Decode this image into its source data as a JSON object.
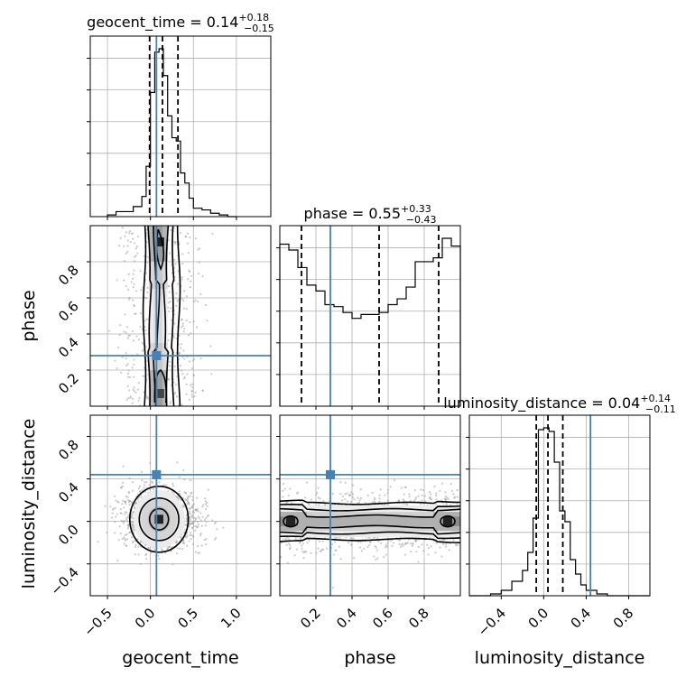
{
  "chart_data": {
    "type": "corner",
    "truth_color": "#4682b4",
    "parameters": [
      {
        "name": "geocent_time",
        "range": [
          -0.7,
          1.4
        ],
        "ticks": [
          "−0.5",
          "0.0",
          "0.5",
          "1.0"
        ],
        "tick_values": [
          -0.5,
          0.0,
          0.5,
          1.0
        ],
        "truth": 0.07,
        "title": {
          "prefix": "geocent_time = 0.14",
          "plus": "+0.18",
          "minus": "−0.15"
        },
        "quantiles": [
          -0.01,
          0.14,
          0.32
        ],
        "hist_edges": [
          -0.5,
          -0.4,
          -0.3,
          -0.2,
          -0.1,
          -0.05,
          0.0,
          0.05,
          0.1,
          0.15,
          0.2,
          0.25,
          0.3,
          0.35,
          0.4,
          0.45,
          0.5,
          0.6,
          0.7,
          0.8,
          0.9,
          1.0
        ],
        "hist_counts": [
          0.01,
          0.03,
          0.03,
          0.06,
          0.12,
          0.3,
          0.74,
          0.98,
          1.0,
          0.84,
          0.6,
          0.47,
          0.45,
          0.26,
          0.2,
          0.11,
          0.05,
          0.04,
          0.02,
          0.01,
          0.0
        ]
      },
      {
        "name": "phase",
        "range": [
          0.0,
          1.0
        ],
        "ticks": [
          "0.2",
          "0.4",
          "0.6",
          "0.8"
        ],
        "tick_values": [
          0.2,
          0.4,
          0.6,
          0.8
        ],
        "truth": 0.28,
        "title": {
          "prefix": "phase = 0.55",
          "plus": "+0.33",
          "minus": "−0.43"
        },
        "quantiles": [
          0.12,
          0.55,
          0.88
        ],
        "hist_edges": [
          0.0,
          0.05,
          0.1,
          0.15,
          0.2,
          0.25,
          0.3,
          0.35,
          0.4,
          0.45,
          0.5,
          0.55,
          0.6,
          0.65,
          0.7,
          0.75,
          0.8,
          0.85,
          0.9,
          0.95,
          1.0
        ],
        "hist_counts": [
          0.83,
          0.8,
          0.71,
          0.62,
          0.59,
          0.52,
          0.51,
          0.48,
          0.45,
          0.47,
          0.47,
          0.48,
          0.52,
          0.55,
          0.61,
          0.74,
          0.74,
          0.76,
          0.86,
          0.82
        ]
      },
      {
        "name": "luminosity_distance",
        "range": [
          -0.7,
          1.0
        ],
        "ticks": [
          "−0.4",
          "0.0",
          "0.4",
          "0.8"
        ],
        "tick_values": [
          -0.4,
          0.0,
          0.4,
          0.8
        ],
        "truth": 0.44,
        "title": {
          "prefix": "luminosity_distance = 0.04",
          "plus": "+0.14",
          "minus": "−0.11"
        },
        "quantiles": [
          -0.07,
          0.04,
          0.18
        ],
        "hist_edges": [
          -0.7,
          -0.5,
          -0.4,
          -0.3,
          -0.2,
          -0.15,
          -0.1,
          -0.05,
          0.0,
          0.05,
          0.1,
          0.15,
          0.2,
          0.25,
          0.3,
          0.35,
          0.4,
          0.5,
          0.6,
          0.7,
          1.0
        ],
        "hist_counts": [
          0.0,
          0.01,
          0.03,
          0.08,
          0.14,
          0.24,
          0.43,
          0.92,
          0.93,
          0.91,
          0.74,
          0.47,
          0.41,
          0.2,
          0.12,
          0.06,
          0.03,
          0.01,
          0.0,
          0.0
        ]
      }
    ],
    "pair_density": {
      "phase_vs_geocent_time": {
        "mode": [
          0.12,
          0.9
        ],
        "secondary_mode": [
          0.12,
          0.08
        ]
      },
      "luminosity_distance_vs_geocent_time": {
        "mode": [
          0.1,
          0.02
        ]
      },
      "luminosity_distance_vs_phase": {
        "modes": [
          [
            0.05,
            0.0
          ],
          [
            0.95,
            0.0
          ]
        ]
      }
    },
    "grid": true
  }
}
